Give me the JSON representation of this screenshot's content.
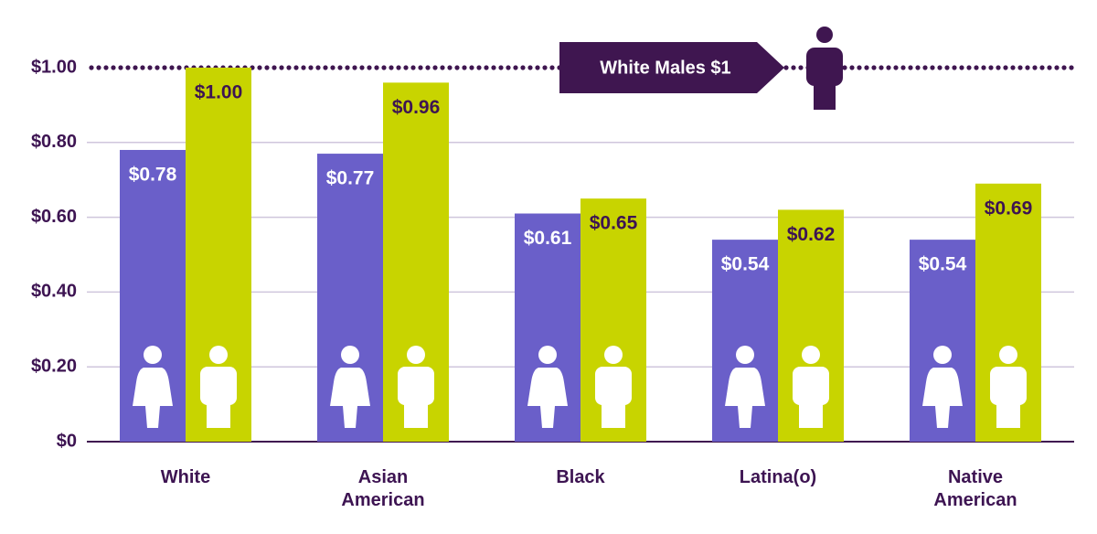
{
  "chart_data": {
    "type": "bar",
    "categories": [
      "White",
      "Asian American",
      "Black",
      "Latina(o)",
      "Native American"
    ],
    "series": [
      {
        "color": "#6a5fc9",
        "values": [
          0.78,
          0.77,
          0.61,
          0.54,
          0.54
        ],
        "value_labels": [
          "$0.78",
          "$0.77",
          "$0.61",
          "$0.54",
          "$0.54"
        ]
      },
      {
        "color": "#c8d400",
        "values": [
          1.0,
          0.96,
          0.65,
          0.62,
          0.69
        ],
        "value_labels": [
          "$1.00",
          "$0.96",
          "$0.65",
          "$0.62",
          "$0.69"
        ]
      }
    ],
    "ylim": [
      0,
      1
    ],
    "yticks": [
      {
        "value": 0,
        "label": "$0"
      },
      {
        "value": 0.2,
        "label": "$0.20"
      },
      {
        "value": 0.4,
        "label": "$0.40"
      },
      {
        "value": 0.6,
        "label": "$0.60"
      },
      {
        "value": 0.8,
        "label": "$0.80"
      },
      {
        "value": 1,
        "label": "$1.00"
      }
    ],
    "grid": true,
    "reference": {
      "value": 1,
      "label": "White Males $1"
    }
  }
}
